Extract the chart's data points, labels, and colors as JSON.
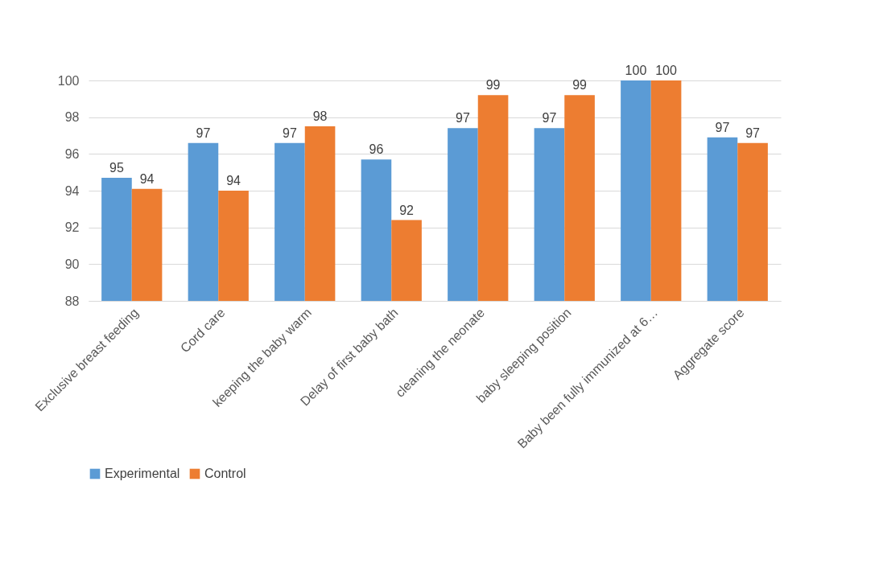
{
  "chart_data": {
    "type": "bar",
    "categories": [
      "Exclusive breast feeding",
      "Cord care",
      "keeping the baby warm",
      "Delay of first baby bath",
      "cleaning the neonate",
      "baby sleeping position",
      "Baby been fully  immunized at 6…",
      "Aggregate score"
    ],
    "series": [
      {
        "name": "Experimental",
        "color": "#5b9bd5",
        "values": [
          94.7,
          96.6,
          96.6,
          95.7,
          97.4,
          97.4,
          100,
          96.9
        ],
        "value_labels": [
          "95",
          "97",
          "97",
          "96",
          "97",
          "97",
          "100",
          "97"
        ]
      },
      {
        "name": "Control",
        "color": "#ed7d31",
        "values": [
          94.1,
          94.0,
          97.5,
          92.4,
          99.2,
          99.2,
          100,
          96.6
        ],
        "value_labels": [
          "94",
          "94",
          "98",
          "92",
          "99",
          "99",
          "100",
          "97"
        ]
      }
    ],
    "ylim": [
      88,
      100
    ],
    "yticks": [
      88,
      90,
      92,
      94,
      96,
      98,
      100
    ],
    "grid": "y",
    "legend": "bottom"
  }
}
